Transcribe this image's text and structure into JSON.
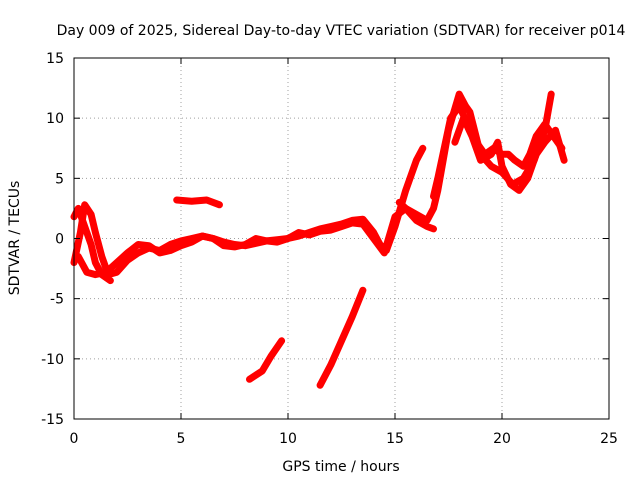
{
  "chart_data": {
    "type": "scatter",
    "title": "Day 009 of 2025, Sidereal Day-to-day VTEC variation (SDTVAR) for receiver p014",
    "xlabel": "GPS time / hours",
    "ylabel": "SDTVAR / TECUs",
    "xlim": [
      0,
      25
    ],
    "ylim": [
      -15,
      15
    ],
    "xticks": [
      "0",
      "5",
      "10",
      "15",
      "20",
      "25"
    ],
    "yticks": [
      "-15",
      "-10",
      "-5",
      "0",
      "5",
      "10",
      "15"
    ],
    "grid": true,
    "marker": "+",
    "color": "#ff0000",
    "series": [
      {
        "points": [
          [
            0.0,
            -2.0
          ],
          [
            0.3,
            0.5
          ],
          [
            0.5,
            2.8
          ],
          [
            0.8,
            2.0
          ],
          [
            1.0,
            0.5
          ],
          [
            1.3,
            -1.5
          ],
          [
            1.6,
            -3.0
          ],
          [
            2.0,
            -2.8
          ],
          [
            2.5,
            -1.8
          ],
          [
            3.0,
            -1.2
          ],
          [
            3.5,
            -0.8
          ],
          [
            4.0,
            -1.0
          ],
          [
            4.5,
            -0.5
          ],
          [
            5.0,
            -0.2
          ],
          [
            5.5,
            0.0
          ],
          [
            6.0,
            0.2
          ],
          [
            6.5,
            0.0
          ],
          [
            7.0,
            -0.3
          ],
          [
            7.5,
            -0.5
          ],
          [
            8.0,
            -0.6
          ],
          [
            8.5,
            -0.4
          ],
          [
            9.0,
            -0.2
          ],
          [
            9.5,
            -0.1
          ],
          [
            10.0,
            0.0
          ],
          [
            10.5,
            0.2
          ],
          [
            11.0,
            0.5
          ],
          [
            11.5,
            0.8
          ],
          [
            12.0,
            1.0
          ],
          [
            12.5,
            1.2
          ],
          [
            13.0,
            1.5
          ],
          [
            13.5,
            1.6
          ],
          [
            14.0,
            0.5
          ],
          [
            14.3,
            -0.5
          ],
          [
            14.6,
            -1.0
          ],
          [
            15.0,
            1.0
          ],
          [
            15.5,
            4.0
          ],
          [
            16.0,
            6.5
          ],
          [
            16.3,
            7.5
          ]
        ]
      },
      {
        "points": [
          [
            0.0,
            1.8
          ],
          [
            0.2,
            2.5
          ],
          [
            0.5,
            1.0
          ],
          [
            0.8,
            -0.5
          ],
          [
            1.0,
            -2.0
          ],
          [
            1.3,
            -3.0
          ],
          [
            1.7,
            -3.5
          ]
        ]
      },
      {
        "points": [
          [
            0.2,
            -1.5
          ],
          [
            0.6,
            -2.8
          ],
          [
            1.0,
            -3.0
          ],
          [
            1.5,
            -2.8
          ],
          [
            2.0,
            -2.0
          ],
          [
            2.5,
            -1.2
          ],
          [
            3.0,
            -0.5
          ],
          [
            3.5,
            -0.6
          ],
          [
            4.0,
            -1.2
          ],
          [
            4.5,
            -1.0
          ],
          [
            5.0,
            -0.6
          ],
          [
            5.5,
            -0.3
          ],
          [
            6.0,
            0.2
          ],
          [
            6.5,
            0.0
          ],
          [
            7.0,
            -0.6
          ],
          [
            7.5,
            -0.7
          ],
          [
            8.0,
            -0.5
          ],
          [
            8.5,
            0.0
          ],
          [
            9.0,
            -0.2
          ],
          [
            9.5,
            -0.3
          ],
          [
            10.0,
            0.0
          ],
          [
            10.5,
            0.5
          ],
          [
            11.0,
            0.3
          ],
          [
            11.5,
            0.6
          ],
          [
            12.0,
            0.7
          ],
          [
            12.5,
            1.0
          ],
          [
            13.0,
            1.3
          ],
          [
            13.5,
            1.2
          ],
          [
            14.0,
            0.0
          ],
          [
            14.5,
            -1.2
          ],
          [
            15.0,
            1.8
          ],
          [
            15.5,
            2.5
          ],
          [
            16.0,
            1.5
          ],
          [
            16.5,
            1.0
          ],
          [
            16.8,
            0.8
          ]
        ]
      },
      {
        "points": [
          [
            4.8,
            3.2
          ],
          [
            5.5,
            3.1
          ],
          [
            6.2,
            3.2
          ],
          [
            6.8,
            2.8
          ]
        ]
      },
      {
        "points": [
          [
            8.2,
            -11.7
          ],
          [
            8.8,
            -11.0
          ],
          [
            9.2,
            -9.8
          ],
          [
            9.7,
            -8.5
          ]
        ]
      },
      {
        "points": [
          [
            11.5,
            -12.2
          ],
          [
            12.0,
            -10.5
          ],
          [
            12.5,
            -8.5
          ],
          [
            13.0,
            -6.5
          ],
          [
            13.5,
            -4.3
          ]
        ]
      },
      {
        "points": [
          [
            15.2,
            3.0
          ],
          [
            15.5,
            2.5
          ],
          [
            16.0,
            2.0
          ],
          [
            16.5,
            1.5
          ],
          [
            16.8,
            2.5
          ],
          [
            17.0,
            4.0
          ],
          [
            17.2,
            6.0
          ],
          [
            17.5,
            9.0
          ],
          [
            18.0,
            12.0
          ],
          [
            18.3,
            11.0
          ],
          [
            18.5,
            10.5
          ],
          [
            19.0,
            7.0
          ],
          [
            19.5,
            6.0
          ],
          [
            20.0,
            5.5
          ],
          [
            20.5,
            4.5
          ],
          [
            21.0,
            5.0
          ],
          [
            21.5,
            6.5
          ],
          [
            22.0,
            9.0
          ],
          [
            22.3,
            12.0
          ]
        ]
      },
      {
        "points": [
          [
            16.8,
            3.5
          ],
          [
            17.0,
            5.0
          ],
          [
            17.3,
            7.5
          ],
          [
            17.6,
            10.0
          ],
          [
            18.0,
            11.0
          ],
          [
            18.4,
            9.5
          ],
          [
            18.8,
            8.0
          ],
          [
            19.2,
            7.0
          ],
          [
            19.6,
            7.5
          ],
          [
            20.0,
            7.0
          ],
          [
            20.3,
            7.0
          ],
          [
            20.6,
            6.5
          ],
          [
            21.0,
            6.0
          ],
          [
            21.3,
            7.0
          ],
          [
            21.6,
            8.5
          ],
          [
            22.0,
            9.5
          ],
          [
            22.4,
            8.5
          ],
          [
            22.8,
            7.5
          ]
        ]
      },
      {
        "points": [
          [
            17.8,
            8.0
          ],
          [
            18.2,
            10.0
          ],
          [
            18.6,
            8.5
          ],
          [
            19.0,
            6.5
          ],
          [
            19.5,
            7.0
          ],
          [
            19.8,
            8.0
          ],
          [
            20.0,
            6.0
          ],
          [
            20.4,
            4.5
          ],
          [
            20.8,
            4.0
          ],
          [
            21.2,
            5.0
          ],
          [
            21.6,
            7.0
          ],
          [
            22.0,
            8.0
          ],
          [
            22.5,
            9.0
          ],
          [
            22.9,
            6.5
          ]
        ]
      }
    ]
  }
}
